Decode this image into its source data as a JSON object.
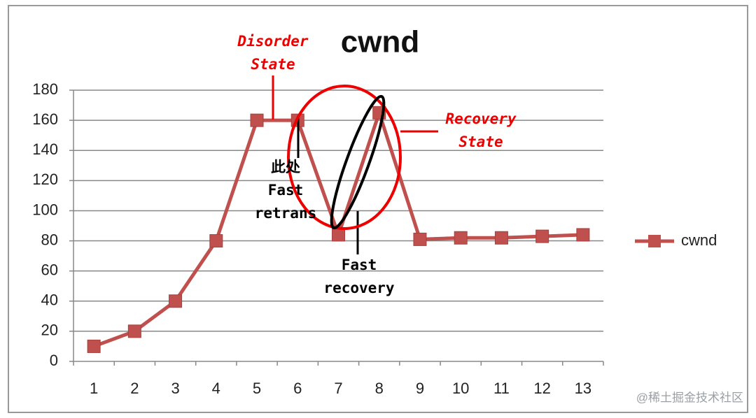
{
  "chart_data": {
    "type": "line",
    "title": "cwnd",
    "categories": [
      "1",
      "2",
      "3",
      "4",
      "5",
      "6",
      "7",
      "8",
      "9",
      "10",
      "11",
      "12",
      "13"
    ],
    "series": [
      {
        "name": "cwnd",
        "color": "#c0504d",
        "values": [
          10,
          20,
          40,
          80,
          160,
          160,
          84,
          165,
          81,
          82,
          82,
          83,
          84
        ]
      }
    ],
    "ylim": [
      0,
      180
    ],
    "yticks": [
      0,
      20,
      40,
      60,
      80,
      100,
      120,
      140,
      160,
      180
    ],
    "grid": true,
    "legend": "right",
    "annotations": [
      [
        "Disorder",
        "State"
      ],
      [
        "此处",
        "Fast",
        "retrans"
      ],
      [
        "Fast",
        "recovery"
      ],
      [
        "Recovery",
        "State"
      ]
    ],
    "watermark": "@稀土掘金技术社区"
  }
}
